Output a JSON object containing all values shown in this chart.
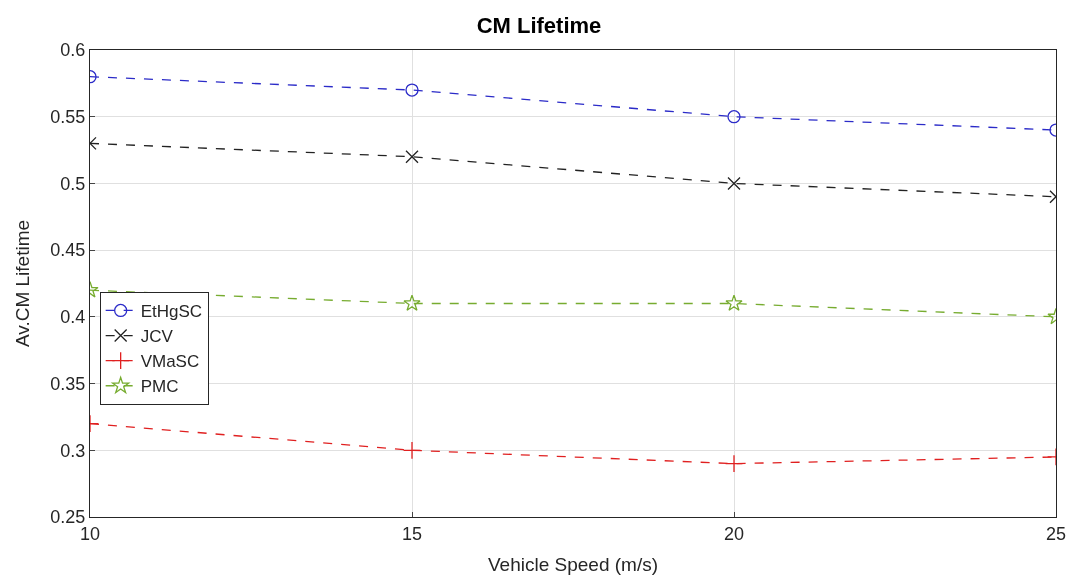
{
  "chart_data": {
    "type": "line",
    "title": "CM Lifetime",
    "xlabel": "Vehicle Speed (m/s)",
    "ylabel": "Av.CM Lifetime",
    "x": [
      10,
      15,
      20,
      25
    ],
    "xlim": [
      10,
      25
    ],
    "xticks": [
      10,
      15,
      20,
      25
    ],
    "ylim": [
      0.25,
      0.6
    ],
    "yticks": [
      0.25,
      0.3,
      0.35,
      0.4,
      0.45,
      0.5,
      0.55,
      0.6
    ],
    "grid": true,
    "legend": "left",
    "line_style": "dashed",
    "series": [
      {
        "name": "EtHgSC",
        "color": "#2b2bc8",
        "marker": "circle",
        "values": [
          0.58,
          0.57,
          0.55,
          0.54
        ]
      },
      {
        "name": "JCV",
        "color": "#222222",
        "marker": "cross",
        "values": [
          0.53,
          0.52,
          0.5,
          0.49
        ]
      },
      {
        "name": "VMaSC",
        "color": "#e02020",
        "marker": "plus",
        "values": [
          0.32,
          0.3,
          0.29,
          0.295
        ]
      },
      {
        "name": "PMC",
        "color": "#77ac30",
        "marker": "star",
        "values": [
          0.42,
          0.41,
          0.41,
          0.4
        ]
      }
    ]
  }
}
